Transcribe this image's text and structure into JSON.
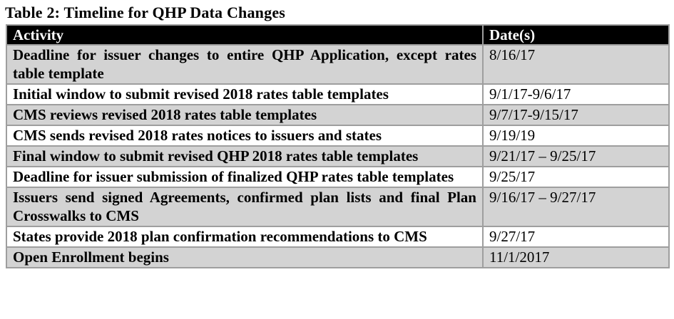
{
  "title": "Table 2: Timeline for QHP Data Changes",
  "table": {
    "columns": {
      "activity": "Activity",
      "date": "Date(s)"
    },
    "rows": [
      {
        "activity": "Deadline for issuer changes to entire QHP Application, except rates table template",
        "date": "8/16/17"
      },
      {
        "activity": "Initial window to submit revised 2018 rates table templates",
        "date": "9/1/17-9/6/17"
      },
      {
        "activity": "CMS reviews revised 2018 rates table templates",
        "date": "9/7/17-9/15/17"
      },
      {
        "activity": "CMS sends revised 2018 rates notices to issuers and states",
        "date": "9/19/19"
      },
      {
        "activity": "Final window to submit revised QHP 2018 rates table templates",
        "date": "9/21/17 – 9/25/17"
      },
      {
        "activity": "Deadline for issuer submission of finalized QHP rates table templates",
        "date": "9/25/17"
      },
      {
        "activity": "Issuers send signed Agreements, confirmed plan lists and final Plan Crosswalks to CMS",
        "date": "9/16/17 – 9/27/17"
      },
      {
        "activity": "States provide 2018 plan confirmation recommendations to CMS",
        "date": "9/27/17"
      },
      {
        "activity": "Open Enrollment begins",
        "date": "11/1/2017"
      }
    ]
  },
  "colors": {
    "header_bg": "#000000",
    "header_text": "#ffffff",
    "row_shade": "#d3d3d3",
    "border": "#9e9e9e",
    "outer_border": "#4d4d4d"
  }
}
